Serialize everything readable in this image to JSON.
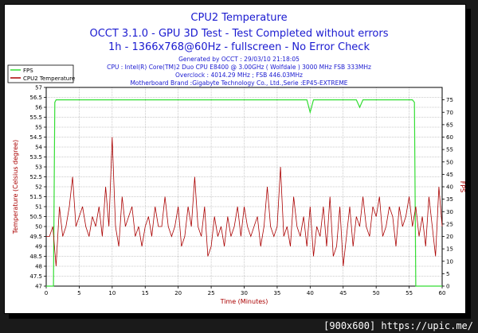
{
  "chart_data": {
    "type": "line",
    "title": "CPU2 Temperature",
    "subtitle_lines": [
      "OCCT 3.1.0 - GPU 3D Test - Test Completed without errors",
      "1h - 1366x768@60Hz - fullscreen - No Error Check"
    ],
    "info_lines": [
      "Generated by OCCT : 29/03/10 21:18:05",
      "CPU : Intel(R) Core(TM)2 Duo CPU E8400 @ 3.00GHz ( Wolfdale ) 3000 MHz FSB 333MHz",
      "Overclock : 4014.29 MHz ; FSB 446.03MHz",
      "Motherboard Brand :Gigabyte Technology Co., Ltd.,Serie :EP45-EXTREME"
    ],
    "xlabel": "Time (Minutes)",
    "ylabel_left": "Temperature (Celsius degree)",
    "ylabel_right": "FPS",
    "xlim": [
      0,
      60
    ],
    "ylim_left": [
      47,
      57
    ],
    "ylim_right": [
      0,
      80
    ],
    "x_ticks": [
      "0",
      "5",
      "10",
      "15",
      "20",
      "25",
      "30",
      "35",
      "40",
      "45",
      "50",
      "55",
      "60"
    ],
    "y_left_ticks": [
      "47",
      "47.5",
      "48",
      "48.5",
      "49",
      "49.5",
      "50",
      "50.5",
      "51",
      "51.5",
      "52",
      "52.5",
      "53",
      "53.5",
      "54",
      "54.5",
      "55",
      "55.5",
      "56",
      "56.5",
      "57"
    ],
    "y_right_ticks": [
      "0",
      "5",
      "10",
      "15",
      "20",
      "25",
      "30",
      "35",
      "40",
      "45",
      "50",
      "55",
      "60",
      "65",
      "70",
      "75"
    ],
    "grid": true,
    "legend_position": "top-left",
    "series": [
      {
        "name": "FPS",
        "color": "#33dd33",
        "axis": "right",
        "x": [
          0,
          1.1,
          1.3,
          1.5,
          10,
          20,
          30,
          39.5,
          40,
          40.5,
          47,
          47.5,
          48,
          55.5,
          55.8,
          56,
          60
        ],
        "values": [
          0,
          0,
          74,
          75,
          75,
          75,
          75,
          75,
          70,
          75,
          75,
          72,
          75,
          75,
          74,
          0,
          0
        ]
      },
      {
        "name": "CPU2 Temperature",
        "color": "#aa0000",
        "axis": "left",
        "x": [
          0,
          0.5,
          1,
          1.5,
          2,
          2.5,
          3,
          3.5,
          4,
          4.5,
          5,
          5.5,
          6,
          6.5,
          7,
          7.5,
          8,
          8.5,
          9,
          9.5,
          10,
          10.5,
          11,
          11.5,
          12,
          12.5,
          13,
          13.5,
          14,
          14.5,
          15,
          15.5,
          16,
          16.5,
          17,
          17.5,
          18,
          18.5,
          19,
          19.5,
          20,
          20.5,
          21,
          21.5,
          22,
          22.5,
          23,
          23.5,
          24,
          24.5,
          25,
          25.5,
          26,
          26.5,
          27,
          27.5,
          28,
          28.5,
          29,
          29.5,
          30,
          30.5,
          31,
          31.5,
          32,
          32.5,
          33,
          33.5,
          34,
          34.5,
          35,
          35.5,
          36,
          36.5,
          37,
          37.5,
          38,
          38.5,
          39,
          39.5,
          40,
          40.5,
          41,
          41.5,
          42,
          42.5,
          43,
          43.5,
          44,
          44.5,
          45,
          45.5,
          46,
          46.5,
          47,
          47.5,
          48,
          48.5,
          49,
          49.5,
          50,
          50.5,
          51,
          51.5,
          52,
          52.5,
          53,
          53.5,
          54,
          54.5,
          55,
          55.5,
          56,
          56.5,
          57,
          57.5,
          58,
          58.5,
          59,
          59.5,
          60
        ],
        "values": [
          49.5,
          49.5,
          50,
          48,
          51,
          49.5,
          50,
          51,
          52.5,
          50,
          50.5,
          51,
          50,
          49.5,
          50.5,
          50,
          51,
          49.5,
          52,
          50,
          54.5,
          50,
          49,
          51.5,
          50,
          50.5,
          51,
          49.5,
          50,
          49,
          50,
          50.5,
          49.5,
          51,
          50,
          50,
          51.5,
          50,
          49.5,
          50,
          51,
          49,
          49.5,
          51,
          50,
          52.5,
          50,
          49.5,
          51,
          48.5,
          49,
          50.5,
          49.5,
          50,
          49,
          50.5,
          49.5,
          50,
          51,
          49.5,
          51,
          50,
          49.5,
          50,
          50.5,
          49,
          50,
          52,
          50,
          49.5,
          50,
          53,
          49.5,
          50,
          49,
          51.5,
          50,
          49.5,
          50.5,
          49,
          51,
          48.5,
          50,
          49.5,
          51,
          49,
          51.5,
          48.5,
          49,
          51,
          48,
          49.5,
          51,
          49,
          50.5,
          50,
          51.5,
          50,
          49.5,
          51,
          50.5,
          51.5,
          49.5,
          50,
          51,
          50.5,
          49,
          51,
          50,
          50.5,
          51.5,
          50,
          51,
          49.5,
          50.5,
          49,
          51.5,
          50,
          48.5,
          52,
          50
        ]
      }
    ]
  },
  "watermark": "[900x600] https://upic.me/"
}
